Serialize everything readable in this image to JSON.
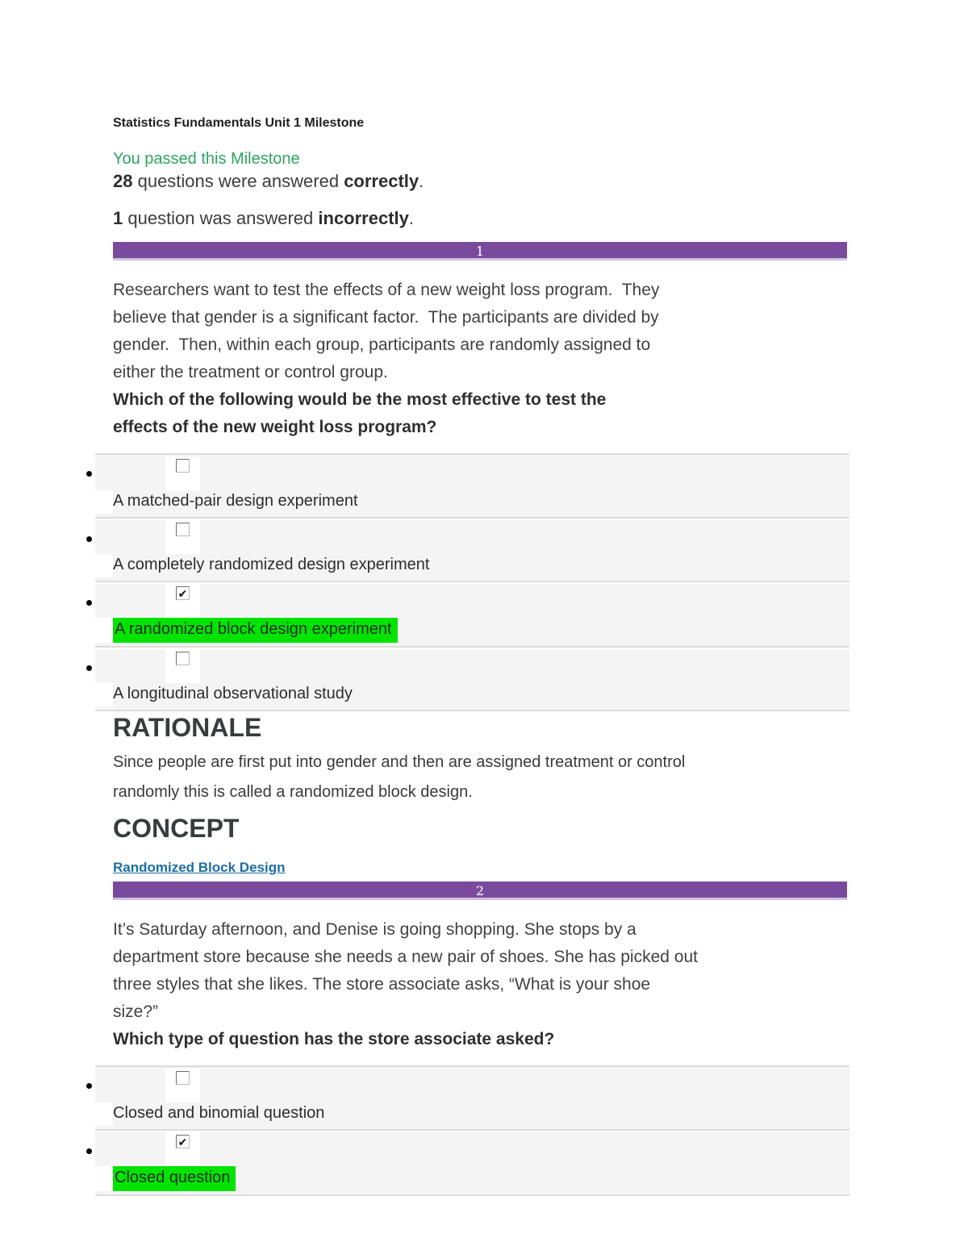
{
  "page": {
    "title": "Statistics Fundamentals Unit 1 Milestone",
    "pass_message": "You passed this Milestone",
    "correct": {
      "count": "28",
      "text": " questions were answered ",
      "emphasis": "correctly",
      "suffix": "."
    },
    "incorrect": {
      "count": "1",
      "text": " question was answered ",
      "emphasis": "incorrectly",
      "suffix": "."
    }
  },
  "colors": {
    "accent-purple": "#7a4a9c",
    "accent-purple-border": "#cdc2de",
    "highlight-green": "#00e400",
    "pass-green": "#2fa362",
    "link-blue": "#1c6ea4",
    "row-gray": "#f4f4f5",
    "row-border": "#dcdcdd"
  },
  "questions": [
    {
      "number": "1",
      "prompt": "Researchers want to test the effects of a new weight loss program.  They\nbelieve that gender is a significant factor.  The participants are divided by\ngender.  Then, within each group, participants are randomly assigned to\neither the treatment or control group.",
      "question": "Which of the following would be the most effective to test the\neffects of the new weight loss program?",
      "options": [
        {
          "label": "A matched-pair design experiment",
          "checked": false,
          "highlighted": false
        },
        {
          "label": "A completely randomized design experiment",
          "checked": false,
          "highlighted": false
        },
        {
          "label": "A randomized block design experiment",
          "checked": true,
          "highlighted": true
        },
        {
          "label": "A longitudinal observational study",
          "checked": false,
          "highlighted": false
        }
      ],
      "rationale_heading": "RATIONALE",
      "rationale": "Since people are first put into gender and then are assigned treatment or control\nrandomly this is called a randomized block design.",
      "concept_heading": "CONCEPT",
      "concept_link": "Randomized Block Design"
    },
    {
      "number": "2",
      "prompt": "It’s Saturday afternoon, and Denise is going shopping. She stops by a\ndepartment store because she needs a new pair of shoes. She has picked out\nthree styles that she likes. The store associate asks, “What is your shoe\nsize?”",
      "question": "Which type of question has the store associate asked?",
      "options": [
        {
          "label": "Closed and binomial question",
          "checked": false,
          "highlighted": false
        },
        {
          "label": "Closed question",
          "checked": true,
          "highlighted": true
        }
      ]
    }
  ]
}
